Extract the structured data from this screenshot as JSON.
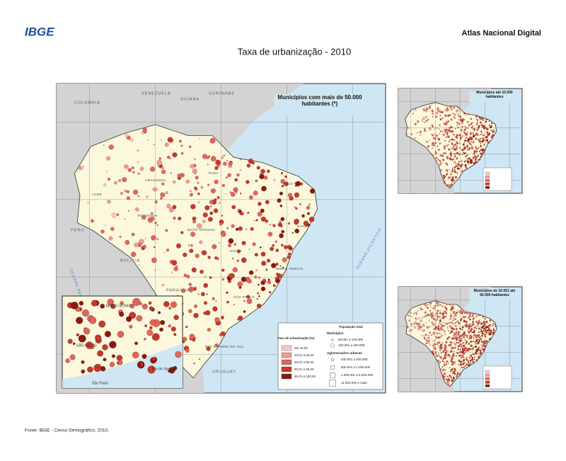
{
  "header": {
    "logo": "IBGE",
    "brand": "Atlas Nacional Digital",
    "title": "Taxa de urbanização - 2010"
  },
  "main_map": {
    "heading": "Municípios com mais de 50.000 habitantes (*)",
    "countries": [
      "VENEZUELA",
      "COLOMBIA",
      "GUIANA",
      "SURINAME",
      "PERU",
      "BOLIVIA",
      "PARAGUAY",
      "URUGUAY"
    ],
    "states": [
      "AMAZONAS",
      "PARÁ",
      "MATO GROSSO",
      "GOIÁS",
      "MINAS GERAIS",
      "BAHIA",
      "PIAUÍ",
      "SÃO PAULO",
      "RONDÔNIA",
      "ACRE",
      "RIO GRANDE DO SUL"
    ],
    "oceans": [
      "OCEANO ATLÂNTICO",
      "OCEANO PACÍFICO"
    ],
    "legend": {
      "rate_title": "Taxa de urbanização (%)",
      "rate_classes": [
        "até 40,00",
        "40,01 a 60,00",
        "60,01 a 80,00",
        "80,01 a 90,00",
        "90,01 a 100,00"
      ],
      "pop_title": "População total",
      "municipios": "Municípios",
      "municipio_classes": [
        "50.001 a 100.000",
        "100.001 a 400.000"
      ],
      "aglomeracoes": "Aglomerações urbanas",
      "aglomeracao_classes": [
        "400.001 a 500.000",
        "500.001 a 1.000.000",
        "1.000.001 a 5.000.000",
        "11.000.000 e mais"
      ]
    },
    "inset_labels": [
      "MINAS GERAIS",
      "SÃO PAULO",
      "Rio de Janeiro",
      "São Paulo"
    ]
  },
  "small_maps": [
    {
      "heading": "Municípios até 10.000 habitantes"
    },
    {
      "heading": "Municípios de 10.001 até 50.000 habitantes"
    }
  ],
  "footer": "Fonte: IBGE - Censo Demográfico, 2010."
}
